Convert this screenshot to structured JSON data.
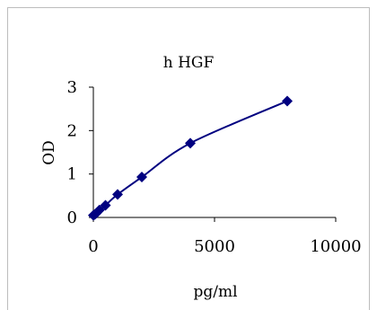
{
  "chart_data": {
    "type": "scatter",
    "title": "h HGF",
    "xlabel": "pg/ml",
    "ylabel": "OD",
    "xlim": [
      0,
      10000
    ],
    "ylim": [
      0,
      3
    ],
    "xticks": [
      0,
      5000,
      10000
    ],
    "yticks": [
      0,
      1,
      2,
      3
    ],
    "x_tick_labels": [
      "0",
      "5000",
      "10000"
    ],
    "y_tick_labels": [
      "0",
      "1",
      "2",
      "3"
    ],
    "grid": false,
    "legend": "none",
    "series": [
      {
        "marker": "diamond",
        "color": "#000080",
        "line": "smooth",
        "points": [
          {
            "x": 0,
            "y": 0.05
          },
          {
            "x": 62.5,
            "y": 0.07
          },
          {
            "x": 125,
            "y": 0.1
          },
          {
            "x": 250,
            "y": 0.17
          },
          {
            "x": 500,
            "y": 0.28
          },
          {
            "x": 1000,
            "y": 0.53
          },
          {
            "x": 2000,
            "y": 0.93
          },
          {
            "x": 4000,
            "y": 1.71
          },
          {
            "x": 8000,
            "y": 2.68
          }
        ]
      }
    ]
  }
}
